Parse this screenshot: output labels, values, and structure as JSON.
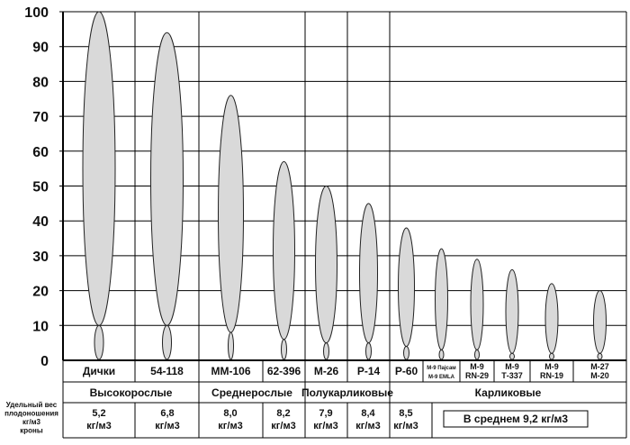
{
  "chart_data": {
    "type": "bar",
    "title": "",
    "xlabel": "",
    "ylabel": "",
    "ylim": [
      0,
      100
    ],
    "yticks": [
      0,
      10,
      20,
      30,
      40,
      50,
      60,
      70,
      80,
      90,
      100
    ],
    "grid": true,
    "mark_style": "ellipse tree crown over small ellipse trunk",
    "colors": {
      "fill": "#d9d9d9",
      "stroke": "#222222",
      "grid": "#000000"
    },
    "categories": [
      "Дички",
      "54-118",
      "ММ-106",
      "62-396",
      "М-26",
      "Р-14",
      "Р-60",
      "М-9 Пајсам М-9 EMLA",
      "М-9 RN-29",
      "М-9 Т-337",
      "М-9 RN-19",
      "М-27 М-20"
    ],
    "category_labels": [
      [
        "Дички"
      ],
      [
        "54-118"
      ],
      [
        "ММ-106"
      ],
      [
        "62-396"
      ],
      [
        "М-26"
      ],
      [
        "Р-14"
      ],
      [
        "Р-60"
      ],
      [
        "М-9 Пајсам",
        "М-9 EMLA"
      ],
      [
        "М-9",
        "RN-29"
      ],
      [
        "М-9",
        "Т-337"
      ],
      [
        "М-9",
        "RN-19"
      ],
      [
        "М-27",
        "М-20"
      ]
    ],
    "values": [
      100,
      94,
      76,
      57,
      50,
      45,
      38,
      32,
      29,
      26,
      22,
      20
    ],
    "trunk_top": [
      10,
      10,
      8,
      6,
      5,
      5,
      4,
      3,
      3,
      2,
      2,
      2
    ],
    "groups": [
      {
        "name": "Высокорослые",
        "categories": [
          "Дички",
          "54-118"
        ],
        "yield": [
          "5,2 кг/м3",
          "6,8 кг/м3"
        ]
      },
      {
        "name": "Среднерослые",
        "categories": [
          "ММ-106",
          "62-396"
        ],
        "yield": [
          "8,0 кг/м3",
          "8,2 кг/м3"
        ]
      },
      {
        "name": "Полукарликовые",
        "categories": [
          "М-26",
          "Р-14"
        ],
        "yield": [
          "7,9 кг/м3",
          "8,4 кг/м3"
        ]
      },
      {
        "name": "Карликовые",
        "categories": [
          "Р-60",
          "М-9 Пајсам М-9 EMLA",
          "М-9 RN-29",
          "М-9 Т-337",
          "М-9 RN-19",
          "М-27 М-20"
        ],
        "yield": [
          "8,5 кг/м3"
        ],
        "average_label": "В среднем 9,2 кг/м3"
      }
    ],
    "yield_row_label": [
      "Удельный вес",
      "плодоношения",
      "кг/м3",
      "кроны"
    ]
  }
}
